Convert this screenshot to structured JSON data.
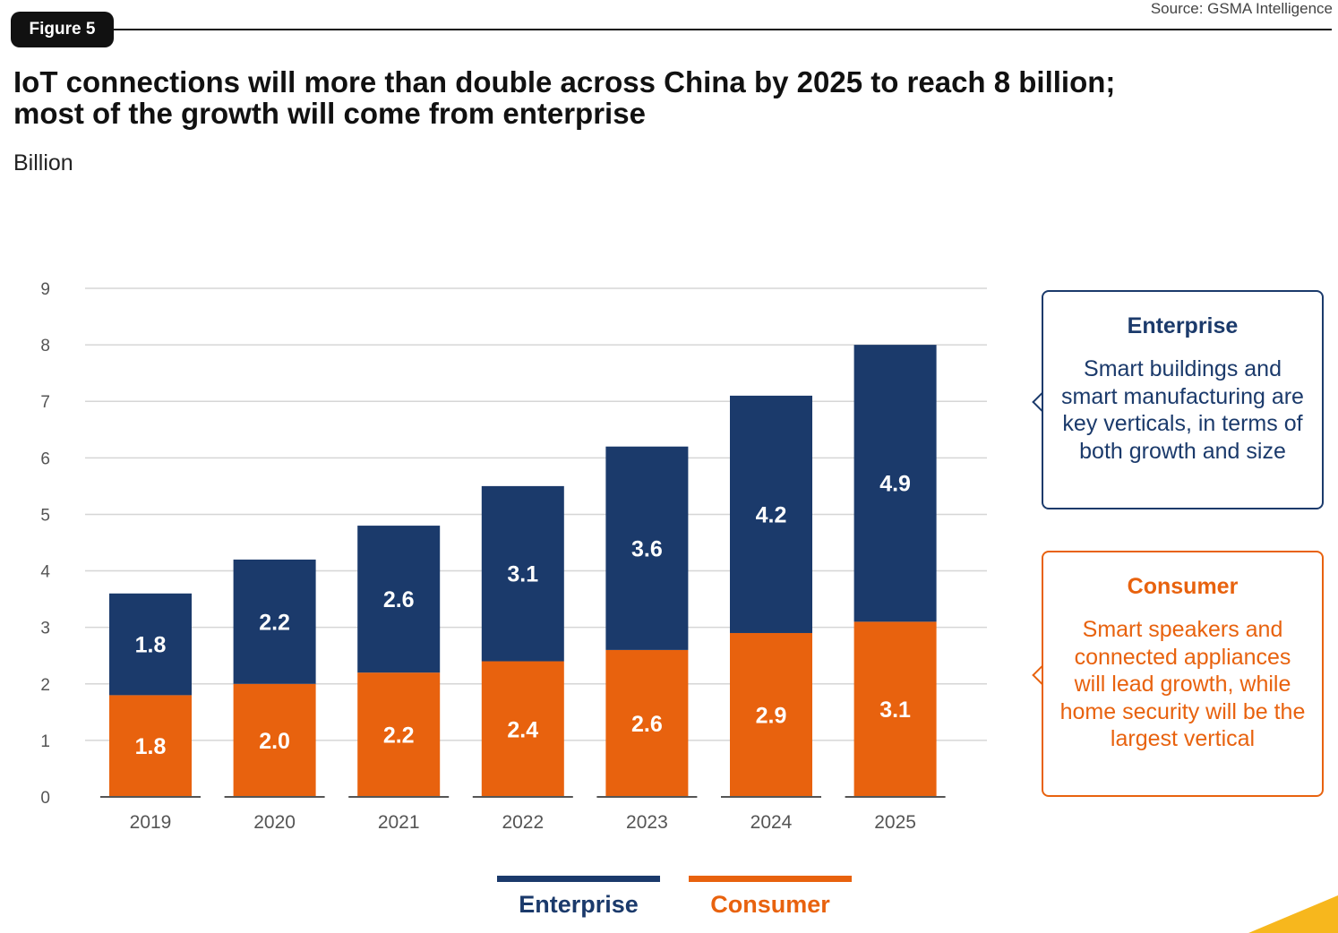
{
  "figure_label": "Figure 5",
  "source": "Source: GSMA Intelligence",
  "title_line1": "IoT connections will more than double across China by 2025 to reach 8 billion;",
  "title_line2": "most of the growth will come from enterprise",
  "unit": "Billion",
  "colors": {
    "enterprise": "#1b3a6b",
    "consumer": "#e8620e",
    "accent": "#f7b71d"
  },
  "callouts": {
    "enterprise": {
      "title": "Enterprise",
      "text": "Smart buildings and smart manufacturing are key verticals, in terms of both growth and size"
    },
    "consumer": {
      "title": "Consumer",
      "text": "Smart speakers and connected appliances will lead growth, while home security will be the largest vertical"
    }
  },
  "legend": {
    "enterprise": "Enterprise",
    "consumer": "Consumer"
  },
  "chart_data": {
    "type": "bar",
    "stacked": true,
    "categories": [
      "2019",
      "2020",
      "2021",
      "2022",
      "2023",
      "2024",
      "2025"
    ],
    "series": [
      {
        "name": "Consumer",
        "values": [
          1.8,
          2.0,
          2.2,
          2.4,
          2.6,
          2.9,
          3.1
        ],
        "labels": [
          "1.8",
          "2.0",
          "2.2",
          "2.4",
          "2.6",
          "2.9",
          "3.1"
        ]
      },
      {
        "name": "Enterprise",
        "values": [
          1.8,
          2.2,
          2.6,
          3.1,
          3.6,
          4.2,
          4.9
        ],
        "labels": [
          "1.8",
          "2.2",
          "2.6",
          "3.1",
          "3.6",
          "4.2",
          "4.9"
        ]
      }
    ],
    "ylim": [
      0,
      9
    ],
    "yticks": [
      0,
      1,
      2,
      3,
      4,
      5,
      6,
      7,
      8,
      9
    ],
    "grid": true,
    "legend_position": "bottom"
  }
}
